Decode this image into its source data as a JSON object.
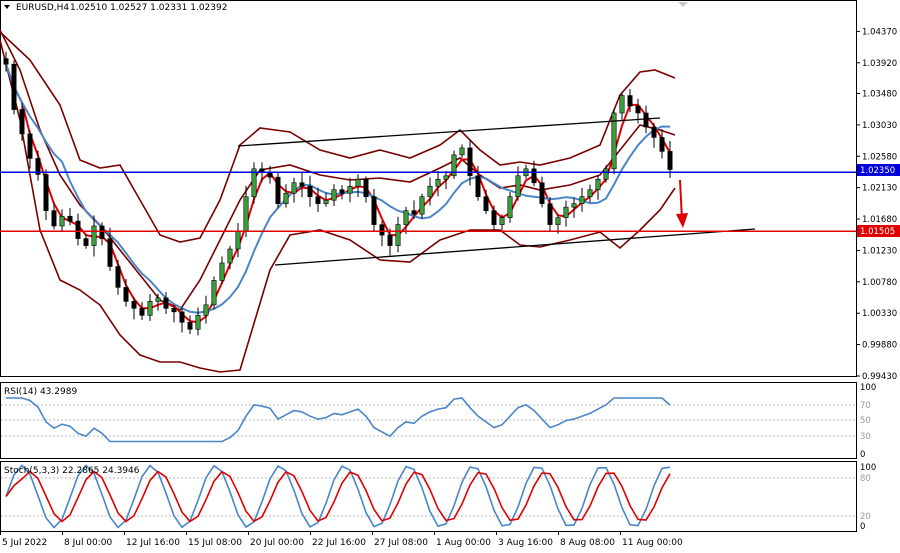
{
  "chart_data": {
    "type": "candlestick",
    "symbol_header": "EURUSD,H4",
    "ohlc_header": "1.02510 1.02527 1.02331 1.02392",
    "price_ticks": [
      "1.04370",
      "1.03920",
      "1.03480",
      "1.03030",
      "1.02580",
      "1.02130",
      "1.01680",
      "1.01230",
      "1.00780",
      "1.00330",
      "0.99880",
      "0.99430"
    ],
    "ylim": [
      0.9943,
      1.0482
    ],
    "time_ticks": [
      "5 Jul 2022",
      "8 Jul 00:00",
      "12 Jul 16:00",
      "15 Jul 08:00",
      "20 Jul 00:00",
      "22 Jul 16:00",
      "27 Jul 08:00",
      "1 Aug 00:00",
      "3 Aug 16:00",
      "8 Aug 08:00",
      "11 Aug 00:00"
    ],
    "horizontal_levels": [
      {
        "label": "1.02350",
        "value": 1.0235,
        "color": "#0000dd"
      },
      {
        "label": "1.01505",
        "value": 1.01505,
        "color": "#e00000"
      }
    ],
    "close_series": [
      1.039,
      1.0325,
      1.029,
      1.0255,
      1.0232,
      1.018,
      1.0158,
      1.0172,
      1.0165,
      1.014,
      1.013,
      1.0158,
      1.014,
      1.01,
      1.007,
      1.005,
      1.004,
      1.003,
      1.005,
      1.0055,
      1.004,
      1.0035,
      1.002,
      1.001,
      1.003,
      1.0045,
      1.008,
      1.0105,
      1.0125,
      1.015,
      1.02,
      1.024,
      1.0235,
      1.0228,
      1.019,
      1.0205,
      1.022,
      1.0215,
      1.02,
      1.019,
      1.0195,
      1.021,
      1.0205,
      1.0215,
      1.0225,
      1.02,
      1.016,
      1.0145,
      1.013,
      1.016,
      1.018,
      1.0175,
      1.02,
      1.0215,
      1.0225,
      1.023,
      1.026,
      1.027,
      1.023,
      1.02,
      1.018,
      1.016,
      1.017,
      1.02,
      1.023,
      1.024,
      1.022,
      1.019,
      1.016,
      1.017,
      1.0185,
      1.019,
      1.02,
      1.021,
      1.0225,
      1.024,
      1.032,
      1.0345,
      1.033,
      1.032,
      1.03,
      1.0285,
      1.0265,
      1.0239
    ],
    "rsi": {
      "label": "RSI(14) 43.2989",
      "ylim": [
        0,
        100
      ],
      "levels": [
        30,
        50,
        70
      ],
      "tick_labels": [
        "100",
        "70",
        "50",
        "30",
        "0"
      ]
    },
    "stoch": {
      "label": "Stoch(5,3,3) 22.2865 24.3946",
      "ylim": [
        0,
        100
      ],
      "levels": [
        20,
        80
      ],
      "tick_labels": [
        "100",
        "80",
        "20",
        "0"
      ]
    }
  },
  "icons": {
    "dropdown": "triangle-down-icon",
    "scroll": "triangle-marker-icon"
  }
}
